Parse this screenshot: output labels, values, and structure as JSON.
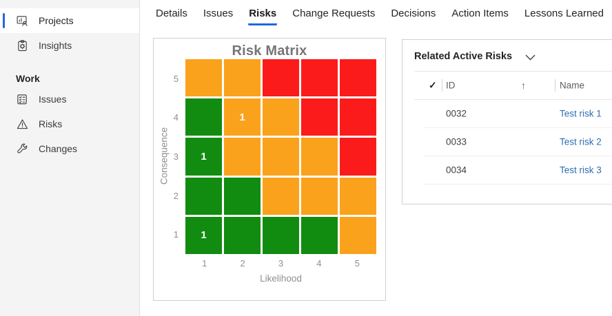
{
  "colors": {
    "accent": "#2266e3",
    "link": "#2e6db4",
    "card_border": "#d1cfcd",
    "sidebar_bg": "#f5f4f4"
  },
  "sidebar": {
    "sections": [
      {
        "header": null,
        "items": [
          {
            "label": "Projects",
            "icon": "projects-icon",
            "selected": true
          },
          {
            "label": "Insights",
            "icon": "insights-icon",
            "selected": false
          }
        ]
      },
      {
        "header": "Work",
        "items": [
          {
            "label": "Issues",
            "icon": "issues-checklist-icon",
            "selected": false
          },
          {
            "label": "Risks",
            "icon": "warning-triangle-icon",
            "selected": false
          },
          {
            "label": "Changes",
            "icon": "wrench-icon",
            "selected": false
          }
        ]
      }
    ]
  },
  "tabs": [
    {
      "label": "Details",
      "active": false
    },
    {
      "label": "Issues",
      "active": false
    },
    {
      "label": "Risks",
      "active": true
    },
    {
      "label": "Change Requests",
      "active": false
    },
    {
      "label": "Decisions",
      "active": false
    },
    {
      "label": "Action Items",
      "active": false
    },
    {
      "label": "Lessons Learned",
      "active": false
    }
  ],
  "chart_data": {
    "type": "heatmap",
    "title": "Risk Matrix",
    "xlabel": "Likelihood",
    "ylabel": "Consequence",
    "x_ticks": [
      "1",
      "2",
      "3",
      "4",
      "5"
    ],
    "y_ticks": [
      "5",
      "4",
      "3",
      "2",
      "1"
    ],
    "color_map": {
      "green": "#118c11",
      "orange": "#faa21b",
      "red": "#fb1b1b"
    },
    "cell_colors": [
      [
        "orange",
        "orange",
        "red",
        "red",
        "red"
      ],
      [
        "green",
        "orange",
        "orange",
        "red",
        "red"
      ],
      [
        "green",
        "orange",
        "orange",
        "orange",
        "red"
      ],
      [
        "green",
        "green",
        "orange",
        "orange",
        "orange"
      ],
      [
        "green",
        "green",
        "green",
        "green",
        "orange"
      ]
    ],
    "cell_labels": [
      [
        "",
        "",
        "",
        "",
        ""
      ],
      [
        "",
        "1",
        "",
        "",
        ""
      ],
      [
        "1",
        "",
        "",
        "",
        ""
      ],
      [
        "",
        "",
        "",
        "",
        ""
      ],
      [
        "1",
        "",
        "",
        "",
        ""
      ]
    ],
    "points": [
      {
        "likelihood": 2,
        "consequence": 4,
        "count": 1
      },
      {
        "likelihood": 1,
        "consequence": 3,
        "count": 1
      },
      {
        "likelihood": 1,
        "consequence": 1,
        "count": 1
      }
    ]
  },
  "related_risks": {
    "title": "Related Active Risks",
    "columns": {
      "select_all": "✓",
      "id": "ID",
      "sort": "↑",
      "name": "Name"
    },
    "rows": [
      {
        "id": "0032",
        "name": "Test risk 1"
      },
      {
        "id": "0033",
        "name": "Test risk 2"
      },
      {
        "id": "0034",
        "name": "Test risk 3"
      }
    ]
  }
}
